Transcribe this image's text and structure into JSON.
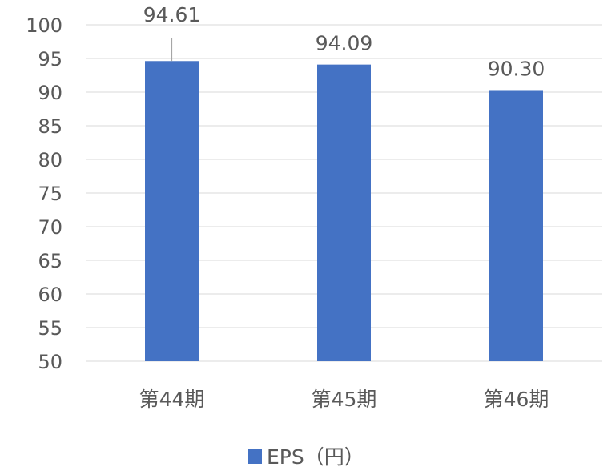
{
  "chart_data": {
    "type": "bar",
    "categories": [
      "第44期",
      "第45期",
      "第46期"
    ],
    "series": [
      {
        "name": "EPS（円）",
        "values": [
          94.61,
          94.09,
          90.3
        ],
        "color": "#4472C4"
      }
    ],
    "data_labels": [
      "94.61",
      "94.09",
      "90.30"
    ],
    "ylim": [
      50,
      100
    ],
    "yticks": [
      "50",
      "55",
      "60",
      "65",
      "70",
      "75",
      "80",
      "85",
      "90",
      "95",
      "100"
    ],
    "grid": true,
    "legend": "bottom",
    "title": "",
    "xlabel": "",
    "ylabel": ""
  },
  "colors": {
    "bar": "#4472C4",
    "grid": "#d9d9d9",
    "text": "#595959"
  }
}
